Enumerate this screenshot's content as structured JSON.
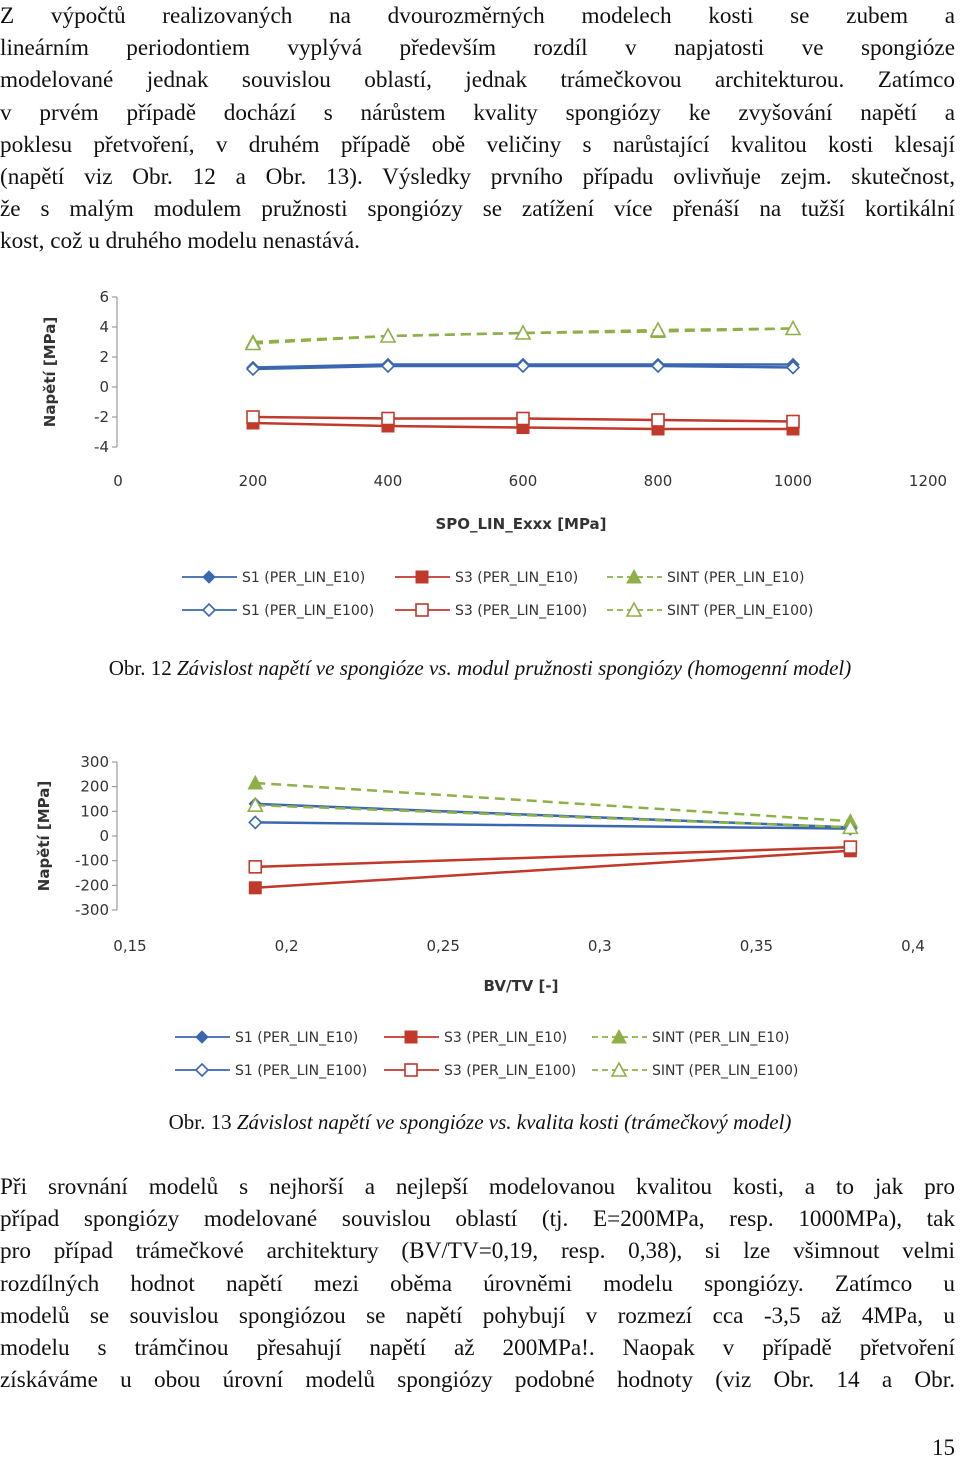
{
  "paragraph1": [
    "Z výpočtů realizovaných na dvourozměrných modelech kosti se zubem a",
    "lineárním periodontiem vyplývá především rozdíl v napjatosti ve spongióze",
    "modelované jednak souvislou oblastí, jednak trámečkovou architekturou. Zatímco",
    "v prvém případě dochází s nárůstem kvality spongiózy ke zvyšování napětí a",
    "poklesu přetvoření, v druhém případě obě veličiny s narůstající kvalitou kosti klesají",
    "(napětí viz Obr. 12 a Obr. 13). Výsledky prvního případu ovlivňuje zejm. skutečnost,",
    "že s malým modulem pružnosti spongiózy se zatížení více přenáší na tužší kortikální",
    "kost, což u druhého modelu nenastává."
  ],
  "caption1": {
    "number": "Obr. 12",
    "text": "Závislost napětí ve spongióze vs. modul pružnosti spongiózy (homogenní model)"
  },
  "caption2": {
    "number": "Obr. 13",
    "text": "Závislost napětí ve spongióze vs. kvalita kosti (trámečkový model)"
  },
  "paragraph2": [
    "Při srovnání modelů s nejhorší a nejlepší modelovanou kvalitou kosti, a to jak pro",
    "případ spongiózy modelované souvislou oblastí (tj. E=200MPa, resp. 1000MPa), tak",
    "pro případ trámečkové architektury (BV/TV=0,19, resp. 0,38), si lze všimnout velmi",
    "rozdílných hodnot napětí mezi oběma úrovněmi modelu spongiózy. Zatímco u",
    "modelů se souvislou spongiózou se napětí pohybují v rozmezí cca -3,5 až 4MPa, u",
    "modelu s trámčinou přesahují napětí až 200MPa!. Naopak v případě přetvoření",
    "získáváme u obou úrovní modelů spongiózy podobné hodnoty (viz Obr. 14 a Obr."
  ],
  "page_number": "15",
  "colors": {
    "s1": "#3A67B0",
    "s3": "#C0392B",
    "sint": "#8DB048"
  },
  "chart_data": [
    {
      "type": "line",
      "title": "",
      "xlabel": "SPO_LIN_Exxx [MPa]",
      "ylabel": "Napětí [MPa]",
      "xlim": [
        0,
        1200
      ],
      "ylim": [
        -4,
        6
      ],
      "xticks": [
        "0",
        "200",
        "400",
        "600",
        "800",
        "1000",
        "1200"
      ],
      "yticks": [
        "6",
        "4",
        "2",
        "0",
        "-2",
        "-4"
      ],
      "x": [
        200,
        400,
        600,
        800,
        1000
      ],
      "series": [
        {
          "name": "S1 (PER_LIN_E10)",
          "color": "#3A67B0",
          "marker": "diamond-filled",
          "dash": false,
          "values": [
            1.3,
            1.5,
            1.5,
            1.5,
            1.5
          ]
        },
        {
          "name": "S3 (PER_LIN_E10)",
          "color": "#C0392B",
          "marker": "square-filled",
          "dash": false,
          "values": [
            -2.4,
            -2.6,
            -2.7,
            -2.8,
            -2.8
          ]
        },
        {
          "name": "SINT (PER_LIN_E10)",
          "color": "#8DB048",
          "marker": "triangle-filled",
          "dash": true,
          "values": [
            3.0,
            3.4,
            3.6,
            3.7,
            3.9
          ]
        },
        {
          "name": "S1 (PER_LIN_E100)",
          "color": "#3A67B0",
          "marker": "diamond-open",
          "dash": false,
          "values": [
            1.2,
            1.4,
            1.4,
            1.4,
            1.3
          ]
        },
        {
          "name": "S3 (PER_LIN_E100)",
          "color": "#C0392B",
          "marker": "square-open",
          "dash": false,
          "values": [
            -2.0,
            -2.1,
            -2.1,
            -2.2,
            -2.3
          ]
        },
        {
          "name": "SINT (PER_LIN_E100)",
          "color": "#8DB048",
          "marker": "triangle-open",
          "dash": true,
          "values": [
            2.9,
            3.4,
            3.6,
            3.8,
            3.9
          ]
        }
      ]
    },
    {
      "type": "line",
      "title": "",
      "xlabel": "BV/TV [-]",
      "ylabel": "Napětí [MPa]",
      "xlim": [
        0.15,
        0.4
      ],
      "ylim": [
        -300,
        300
      ],
      "xticks": [
        "0,15",
        "0,2",
        "0,25",
        "0,3",
        "0,35",
        "0,4"
      ],
      "yticks": [
        "300",
        "200",
        "100",
        "0",
        "-100",
        "-200",
        "-300"
      ],
      "x": [
        0.19,
        0.38
      ],
      "series": [
        {
          "name": "S1 (PER_LIN_E10)",
          "color": "#3A67B0",
          "marker": "diamond-filled",
          "dash": false,
          "values": [
            130,
            35
          ]
        },
        {
          "name": "S3 (PER_LIN_E10)",
          "color": "#C0392B",
          "marker": "square-filled",
          "dash": false,
          "values": [
            -210,
            -60
          ]
        },
        {
          "name": "SINT (PER_LIN_E10)",
          "color": "#8DB048",
          "marker": "triangle-filled",
          "dash": true,
          "values": [
            215,
            60
          ]
        },
        {
          "name": "S1 (PER_LIN_E100)",
          "color": "#3A67B0",
          "marker": "diamond-open",
          "dash": false,
          "values": [
            55,
            30
          ]
        },
        {
          "name": "S3 (PER_LIN_E100)",
          "color": "#C0392B",
          "marker": "square-open",
          "dash": false,
          "values": [
            -125,
            -45
          ]
        },
        {
          "name": "SINT (PER_LIN_E100)",
          "color": "#8DB048",
          "marker": "triangle-open",
          "dash": true,
          "values": [
            125,
            35
          ]
        }
      ]
    }
  ]
}
